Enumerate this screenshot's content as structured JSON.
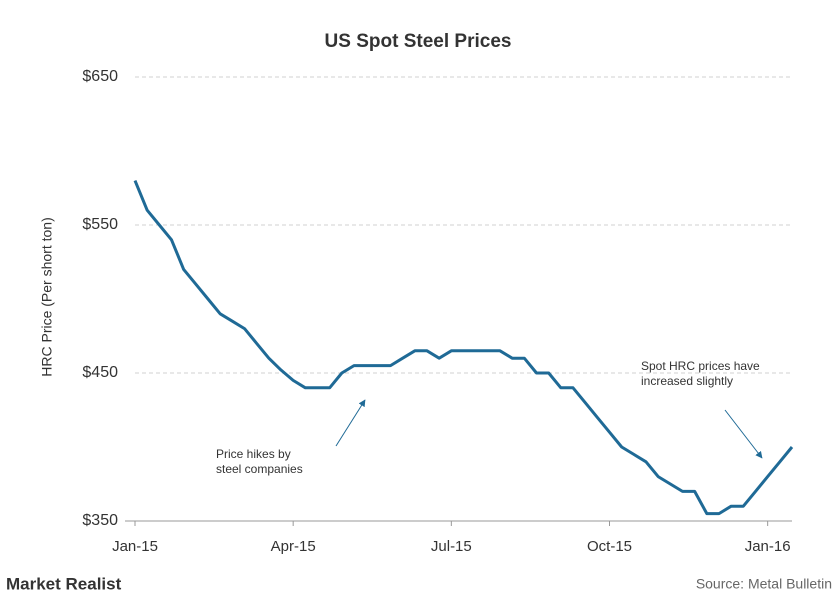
{
  "chart_data": {
    "type": "line",
    "title": "US Spot Steel Prices",
    "ylabel": "HRC Price (Per short ton)",
    "categories": [
      "Jan-15",
      null,
      null,
      null,
      null,
      null,
      null,
      null,
      null,
      null,
      null,
      null,
      null,
      "Apr-15",
      null,
      null,
      null,
      null,
      null,
      null,
      null,
      null,
      null,
      null,
      null,
      null,
      "Jul-15",
      null,
      null,
      null,
      null,
      null,
      null,
      null,
      null,
      null,
      null,
      null,
      null,
      "Oct-15",
      null,
      null,
      null,
      null,
      null,
      null,
      null,
      null,
      null,
      null,
      null,
      null,
      "Jan-16",
      null,
      null
    ],
    "series": [
      {
        "name": "HRC Price",
        "color": "#1f6a96",
        "values": [
          580,
          560,
          550,
          540,
          520,
          510,
          500,
          490,
          485,
          480,
          470,
          460,
          452,
          445,
          440,
          440,
          440,
          450,
          455,
          455,
          455,
          455,
          460,
          465,
          465,
          460,
          465,
          465,
          465,
          465,
          465,
          460,
          460,
          450,
          450,
          440,
          440,
          430,
          420,
          410,
          400,
          395,
          390,
          380,
          375,
          370,
          370,
          355,
          355,
          360,
          360,
          370,
          380,
          390,
          400
        ]
      }
    ],
    "ylim": [
      350,
      650
    ],
    "yticks": [
      {
        "value": 350,
        "label": "$350"
      },
      {
        "value": 450,
        "label": "$450"
      },
      {
        "value": 550,
        "label": "$550"
      },
      {
        "value": 650,
        "label": "$650"
      }
    ],
    "grid": true,
    "annotations": [
      {
        "lines": [
          "Price hikes by",
          "steel companies"
        ]
      },
      {
        "lines": [
          "Spot HRC prices have",
          "increased  slightly"
        ]
      }
    ],
    "source": "Source: Metal Bulletin",
    "brand": "Market Realist"
  }
}
